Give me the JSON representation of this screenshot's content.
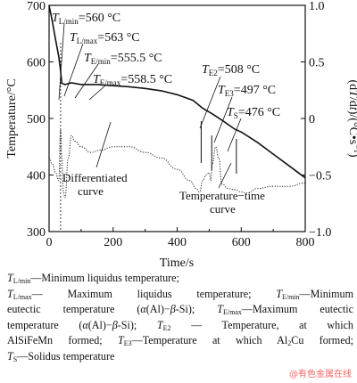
{
  "chart_data": {
    "type": "line",
    "xlabel": "Time/s",
    "ylabel": "Temperature/°C",
    "y2label": "(dT/dt)/(°C•s⁻¹)",
    "xlim": [
      0,
      800
    ],
    "ylim": [
      300,
      700
    ],
    "y2lim": [
      -1.0,
      1.0
    ],
    "x_ticks": [
      "0",
      "200",
      "400",
      "600",
      "800"
    ],
    "y_ticks": [
      "300",
      "400",
      "500",
      "600",
      "700"
    ],
    "y2_ticks": [
      "-1.0",
      "-0.5",
      "0",
      "0.5",
      "1.0"
    ],
    "grid": false,
    "series": [
      {
        "name": "Temperature−time curve",
        "axis": "left",
        "x": [
          0,
          10,
          20,
          30,
          35,
          40,
          50,
          70,
          100,
          150,
          200,
          250,
          300,
          350,
          400,
          450,
          480,
          510,
          540,
          580,
          600,
          650,
          700,
          750,
          800
        ],
        "y": [
          700,
          672,
          640,
          610,
          588,
          562,
          560,
          563,
          560,
          560,
          558,
          556,
          553,
          549,
          542,
          532,
          518,
          508,
          497,
          481,
          476,
          458,
          437,
          416,
          395
        ]
      },
      {
        "name": "Differentiated curve",
        "axis": "right",
        "x": [
          0,
          10,
          20,
          30,
          36,
          40,
          45,
          50,
          60,
          70,
          80,
          100,
          130,
          160,
          200,
          250,
          300,
          350,
          400,
          440,
          460,
          470,
          480,
          490,
          500,
          505,
          510,
          520,
          530,
          540,
          560,
          580,
          600,
          620,
          650,
          700,
          750,
          800
        ],
        "y": [
          -0.35,
          -0.4,
          -0.48,
          -0.55,
          -0.1,
          -0.35,
          -0.65,
          -0.7,
          -0.35,
          -0.15,
          -0.2,
          -0.25,
          -0.3,
          -0.28,
          -0.25,
          -0.25,
          -0.3,
          -0.35,
          -0.45,
          -0.55,
          -0.62,
          -0.65,
          -0.55,
          -0.5,
          -0.48,
          -0.55,
          -0.4,
          -0.25,
          -0.35,
          -0.58,
          -0.62,
          -0.63,
          -0.65,
          -0.66,
          -0.62,
          -0.6,
          -0.6,
          -0.57
        ]
      }
    ],
    "markers": [
      {
        "x": 37,
        "label_html": "<tspan font-style='italic'>T</tspan><tspan font-size='9' dy='3'>L/min</tspan><tspan dy='-3'>=560 °C</tspan>"
      },
      {
        "x": 70,
        "label_html": "<tspan font-style='italic'>T</tspan><tspan font-size='9' dy='3'>L/max</tspan><tspan dy='-3'>=563 °C</tspan>"
      },
      {
        "x": 100,
        "label_html": "<tspan font-style='italic'>T</tspan><tspan font-size='9' dy='3'>E/min</tspan><tspan dy='-3'>=555.5 °C</tspan>"
      },
      {
        "x": 150,
        "label_html": "<tspan font-style='italic'>T</tspan><tspan font-size='9' dy='3'>E/max</tspan><tspan dy='-3'>=558.5 °C</tspan>"
      },
      {
        "x": 475,
        "label_html": "<tspan font-style='italic'>T</tspan><tspan font-size='9' dy='3'>E2</tspan><tspan dy='-3'>=508 °C</tspan>"
      },
      {
        "x": 508,
        "label_html": "<tspan font-style='italic'>T</tspan><tspan font-size='9' dy='3'>E3</tspan><tspan dy='-3'>=497 °C</tspan>"
      },
      {
        "x": 585,
        "label_html": "<tspan font-style='italic'>T</tspan><tspan font-size='9' dy='3'>S</tspan><tspan dy='-3'>=476 °C</tspan>"
      }
    ],
    "annotations": [
      {
        "text": "Differentiated",
        "line": 1
      },
      {
        "text": "curve",
        "line": 2
      },
      {
        "text": "Temperature−time",
        "line": 1
      },
      {
        "text": "curve",
        "line": 2
      }
    ]
  },
  "caption": {
    "line1": "T<sub>L/min</sub>—Minimum liquidus temperature;",
    "line2": "T<sub>L/max</sub>— Maximum liquidus temperature; T<sub>E/min</sub>—Minimum",
    "line3": "eutectic temperature (α(Al)−β-Si); T<sub>E/max</sub>—Maximum eutectic",
    "line4": "temperature (α(Al)−β-Si); T<sub>E2</sub> — Temperature, at which",
    "line5": "AlSiFeMn formed; T<sub>E3</sub>—Temperature at which Al<sub>2</sub>Cu formed;",
    "line6": "T<sub>S</sub>—Solidus temperature"
  },
  "watermark": "@有色金属在线"
}
